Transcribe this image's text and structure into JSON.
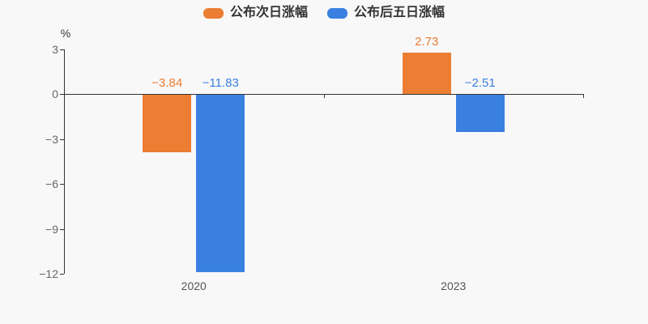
{
  "chart_data": {
    "type": "bar",
    "title": "",
    "categories": [
      "2020",
      "2023"
    ],
    "series": [
      {
        "name": "公布次日涨幅",
        "color": "#ec7e33",
        "values": [
          -3.84,
          2.73
        ],
        "data_labels": [
          "−3.84",
          "2.73"
        ]
      },
      {
        "name": "公布后五日涨幅",
        "color": "#3a80e1",
        "values": [
          -11.83,
          -2.51
        ],
        "data_labels": [
          "−11.83",
          "−2.51"
        ]
      }
    ],
    "xlabel": "",
    "ylabel": "%",
    "ylim": [
      -12,
      3
    ],
    "yticks": [
      {
        "value": 3,
        "label": "3"
      },
      {
        "value": 0,
        "label": "0"
      },
      {
        "value": -3,
        "label": "−3"
      },
      {
        "value": -6,
        "label": "−6"
      },
      {
        "value": -9,
        "label": "−9"
      },
      {
        "value": -12,
        "label": "−12"
      }
    ],
    "legend_position": "top",
    "grid": false,
    "colors": {
      "background": "#f8f8f9",
      "axis_line": "#333333",
      "tick_label": "#666666",
      "category_label": "#555555",
      "legend_text": "#333333"
    }
  }
}
